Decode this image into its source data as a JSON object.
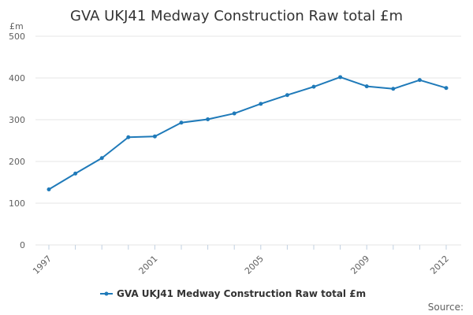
{
  "chart_data": {
    "type": "line",
    "title": "GVA UKJ41 Medway Construction Raw total £m",
    "ylabel": "£m",
    "xlabel": "",
    "ylim": [
      0,
      500
    ],
    "xlim": [
      1997,
      2012
    ],
    "yticks": [
      0,
      100,
      200,
      300,
      400,
      500
    ],
    "xticks": [
      "1997",
      "2001",
      "2005",
      "2009",
      "2012"
    ],
    "grid": "horizontal",
    "legend": "bottom-center",
    "series": [
      {
        "name": "GVA UKJ41 Medway Construction Raw total £m",
        "color": "#1f7ab9",
        "x": [
          1997,
          1998,
          1999,
          2000,
          2001,
          2002,
          2003,
          2004,
          2005,
          2006,
          2007,
          2008,
          2009,
          2010,
          2011,
          2012
        ],
        "values": [
          133,
          171,
          208,
          258,
          260,
          293,
          301,
          315,
          338,
          359,
          379,
          402,
          380,
          374,
          395,
          376
        ]
      }
    ]
  },
  "source_label": "Source:"
}
